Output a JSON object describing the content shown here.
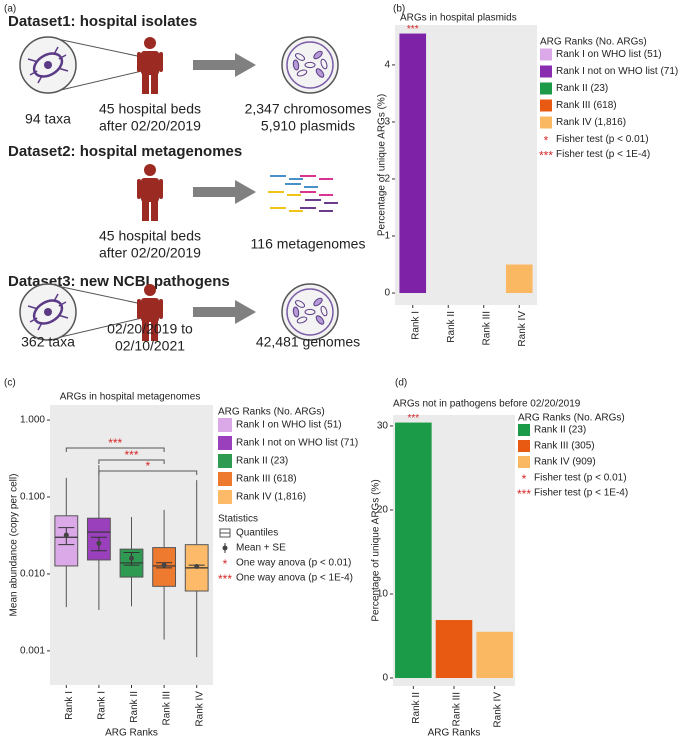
{
  "diagram": {
    "panel_label": "(a)",
    "datasets": [
      {
        "title": "Dataset1: hospital isolates",
        "taxa": "94 taxa",
        "beds": [
          "45 hospital beds",
          "after 02/20/2019"
        ],
        "output": [
          "2,347 chromosomes",
          "5,910 plasmids"
        ]
      },
      {
        "title": "Dataset2: hospital metagenomes",
        "beds": [
          "45 hospital beds",
          "after 02/20/2019"
        ],
        "output": [
          "116 metagenomes"
        ]
      },
      {
        "title": "Dataset3: new NCBI pathogens",
        "taxa": "362 taxa",
        "beds": [
          "02/20/2019 to",
          "02/10/2021"
        ],
        "output": [
          "42,481 genomes"
        ]
      }
    ]
  },
  "chart_data": [
    {
      "type": "bar",
      "panel_label": "(b)",
      "title": "ARGs in hospital plasmids",
      "categories": [
        "Rank I",
        "Rank II",
        "Rank III",
        "Rank IV"
      ],
      "values": [
        4.55,
        0,
        0,
        0.5
      ],
      "colors": [
        "#7e22a8",
        "#1b9a48",
        "#e85a12",
        "#fbb863"
      ],
      "annotations": [
        "***",
        null,
        null,
        null
      ],
      "ylim": [
        -0.21,
        4.7
      ],
      "yticks": [
        0,
        1,
        2,
        3,
        4
      ],
      "ylabel": "Percentage of unique ARGs (%)",
      "legend": {
        "title": "ARG Ranks (No. ARGs)",
        "items": [
          {
            "label": "Rank I on WHO list (51)",
            "color": "#dba8e8"
          },
          {
            "label": "Rank I not on WHO list (71)",
            "color": "#8a2cb0"
          },
          {
            "label": "Rank II (23)",
            "color": "#1b9a48"
          },
          {
            "label": "Rank III (618)",
            "color": "#e85a12"
          },
          {
            "label": "Rank IV (1,816)",
            "color": "#fbb863"
          }
        ],
        "notes": [
          {
            "symbol": "*",
            "label": "Fisher test (p < 0.01)"
          },
          {
            "symbol": "***",
            "label": "Fisher test (p < 1E-4)"
          }
        ]
      }
    },
    {
      "type": "box",
      "panel_label": "(c)",
      "title": "ARGs in hospital metagenomes",
      "categories": [
        "Rank I",
        "Rank I",
        "Rank II",
        "Rank III",
        "Rank IV"
      ],
      "colors": [
        "#dba8e8",
        "#9b40bd",
        "#2f9a52",
        "#ee7a30",
        "#fdbb6a"
      ],
      "whisker_low": [
        0.0037,
        0.0034,
        0.0038,
        0.0014,
        0.00083
      ],
      "q1": [
        0.0127,
        0.0152,
        0.0091,
        0.0069,
        0.006
      ],
      "median": [
        0.03,
        0.035,
        0.0139,
        0.0127,
        0.012
      ],
      "q3": [
        0.057,
        0.053,
        0.021,
        0.022,
        0.024
      ],
      "whisker_high": [
        0.177,
        0.26,
        0.055,
        0.068,
        0.166
      ],
      "mean": [
        0.032,
        0.025,
        0.016,
        0.013,
        0.0125
      ],
      "se": [
        0.008,
        0.005,
        0.003,
        0.001,
        0.0005
      ],
      "annotations": [
        "***",
        "***",
        "*"
      ],
      "log_y": true,
      "ylim": [
        0.00036,
        1.57
      ],
      "yticks": [
        {
          "value": 1,
          "label": "1.000"
        },
        {
          "value": 0.1,
          "label": "0.100"
        },
        {
          "value": 0.01,
          "label": "0.010"
        },
        {
          "value": 0.001,
          "label": "0.001"
        }
      ],
      "ylabel": "Mean abundance (copy per cell)",
      "xlabel": "ARG Ranks",
      "legend": {
        "title": "ARG Ranks (No. ARGs)",
        "items": [
          {
            "label": "Rank I on WHO list (51)",
            "color": "#dba8e8"
          },
          {
            "label": "Rank I not on WHO list (71)",
            "color": "#9b40bd"
          },
          {
            "label": "Rank II (23)",
            "color": "#2f9a52"
          },
          {
            "label": "Rank III (618)",
            "color": "#ee7a30"
          },
          {
            "label": "Rank IV (1,816)",
            "color": "#fdbb6a"
          }
        ],
        "statistics": {
          "title": "Statistics",
          "items": [
            "Quantiles",
            "Mean + SE"
          ]
        },
        "notes": [
          {
            "symbol": "*",
            "label": "One way anova (p < 0.01)"
          },
          {
            "symbol": "***",
            "label": "One way anova (p < 1E-4)"
          }
        ]
      }
    },
    {
      "type": "bar",
      "panel_label": "(d)",
      "title": "ARGs not in pathogens before 02/20/2019",
      "categories": [
        "Rank II",
        "Rank III",
        "Rank IV"
      ],
      "values": [
        30.4,
        6.9,
        5.5
      ],
      "colors": [
        "#1b9a48",
        "#e85a12",
        "#fbb863"
      ],
      "annotations": [
        "***",
        null,
        null
      ],
      "ylim": [
        -0.95,
        31.3
      ],
      "yticks": [
        0,
        10,
        20,
        30
      ],
      "ylabel": "Percentage of unique ARGs (%)",
      "xlabel": "ARG Ranks",
      "legend": {
        "title": "ARG Ranks (No. ARGs)",
        "items": [
          {
            "label": "Rank II (23)",
            "color": "#1b9a48"
          },
          {
            "label": "Rank III (305)",
            "color": "#e85a12"
          },
          {
            "label": "Rank IV (909)",
            "color": "#fbb863"
          }
        ],
        "notes": [
          {
            "symbol": "*",
            "label": "Fisher test (p < 0.01)"
          },
          {
            "symbol": "***",
            "label": "Fisher test (p < 1E-4)"
          }
        ]
      }
    }
  ]
}
